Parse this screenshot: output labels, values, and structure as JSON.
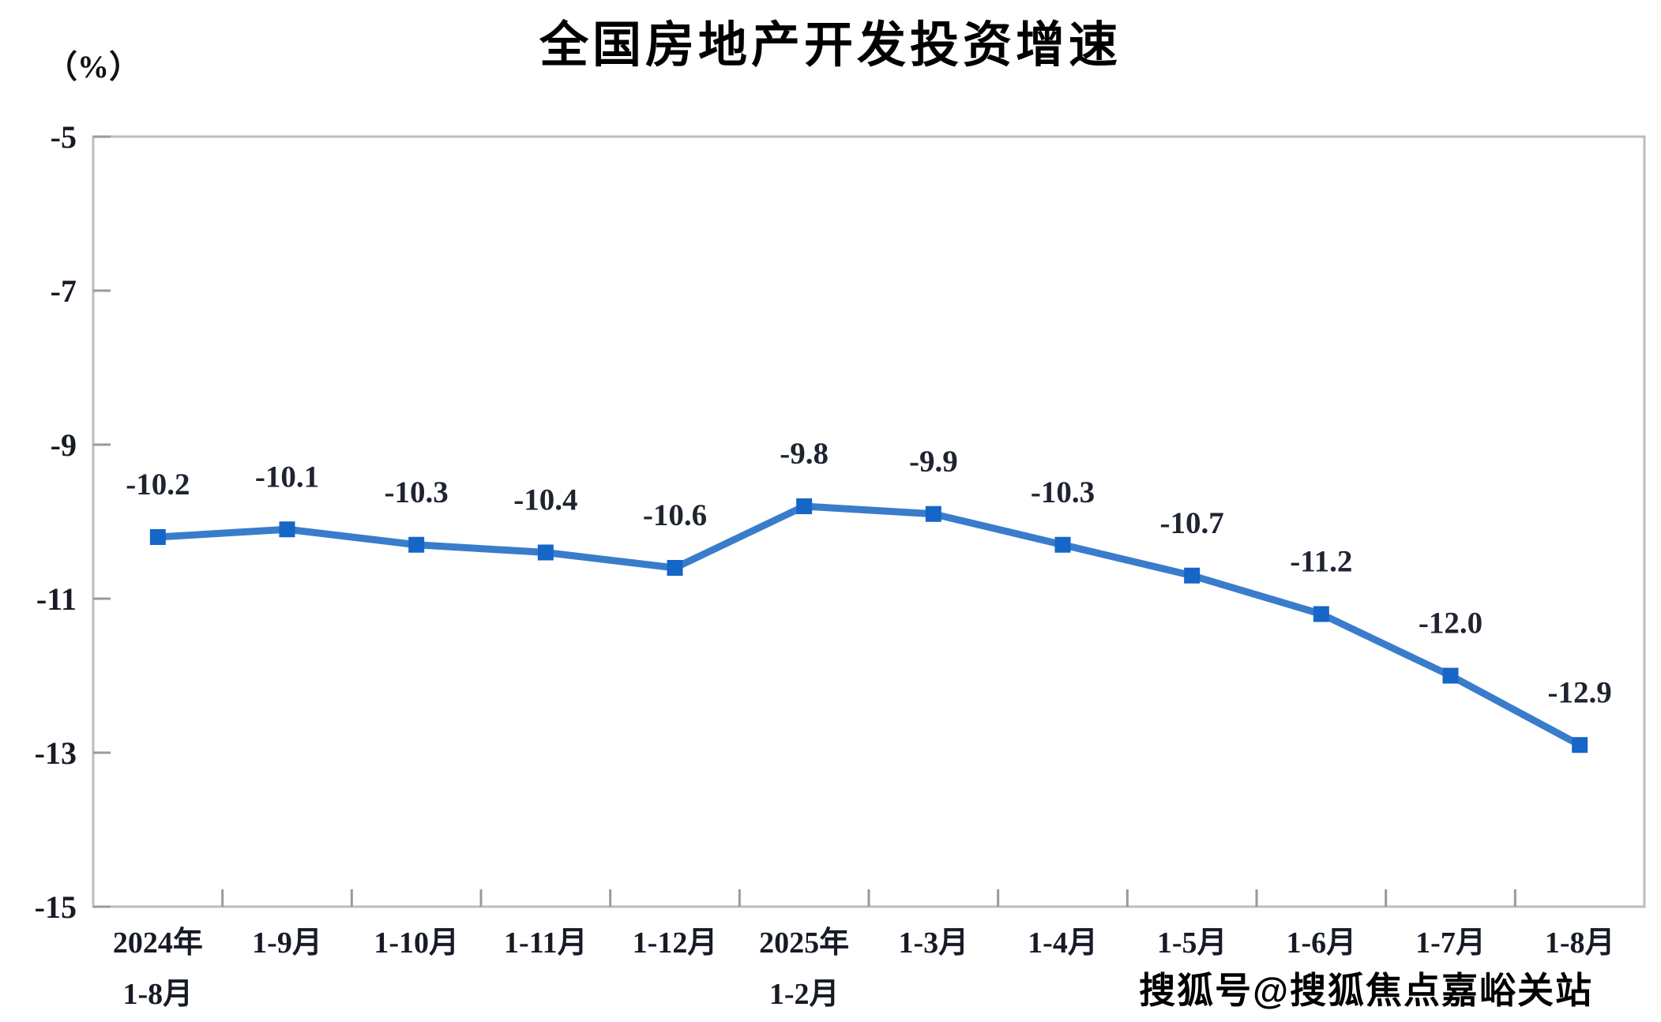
{
  "title": "全国房地产开发投资增速",
  "watermark": "搜狐号@搜狐焦点嘉峪关站",
  "chart_data": {
    "type": "line",
    "title": "全国房地产开发投资增速",
    "ylabel": "（%）",
    "xlabel": "",
    "categories": [
      "2024年\n1-8月",
      "1-9月",
      "1-10月",
      "1-11月",
      "1-12月",
      "2025年\n1-2月",
      "1-3月",
      "1-4月",
      "1-5月",
      "1-6月",
      "1-7月",
      "1-8月"
    ],
    "series": [
      {
        "name": "全国房地产开发投资增速",
        "values": [
          -10.2,
          -10.1,
          -10.3,
          -10.4,
          -10.6,
          -9.8,
          -9.9,
          -10.3,
          -10.7,
          -11.2,
          -12.0,
          -12.9
        ],
        "data_labels": [
          "-10.2",
          "-10.1",
          "-10.3",
          "-10.4",
          "-10.6",
          "-9.8",
          "-9.9",
          "-10.3",
          "-10.7",
          "-11.2",
          "-12.0",
          "-12.9"
        ]
      }
    ],
    "ylim": [
      -15,
      -5
    ],
    "y_ticks": [
      -5,
      -7,
      -9,
      -11,
      -13,
      -15
    ],
    "grid": "off",
    "legend": "none",
    "marker_shape": "square",
    "colors": {
      "line": "#3a7ccc",
      "marker": "#1566c6",
      "data_label": "#1e2430",
      "axis_text": "#161b26",
      "axis_line": "#bdbdbd",
      "tick": "#9a9a9a",
      "title": "#000000"
    }
  }
}
